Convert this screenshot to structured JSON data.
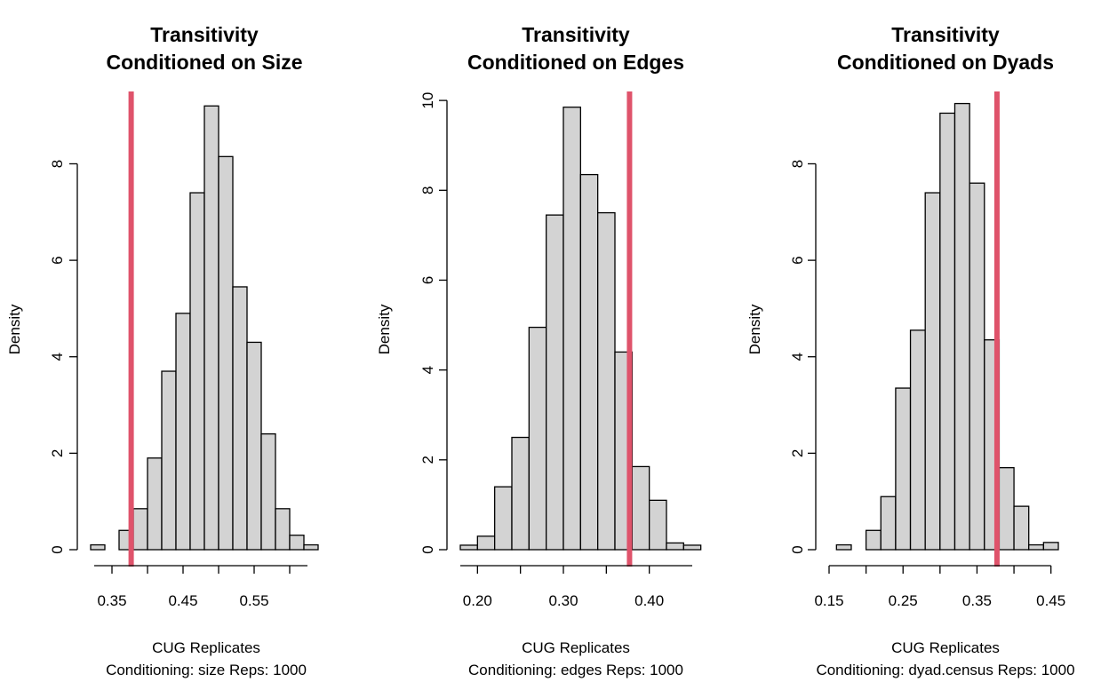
{
  "chart_data": [
    {
      "type": "histogram",
      "title": "Transitivity\nConditioned on Size",
      "title_lines": [
        "Transitivity",
        "Conditioned on Size"
      ],
      "xlabel_lines": [
        "CUG Replicates",
        "Conditioning: size Reps: 1000"
      ],
      "ylabel": "Density",
      "bin_width": 0.02,
      "bins": [
        {
          "x0": 0.32,
          "x1": 0.34,
          "density": 0.1
        },
        {
          "x0": 0.34,
          "x1": 0.36,
          "density": 0.0
        },
        {
          "x0": 0.36,
          "x1": 0.38,
          "density": 0.4
        },
        {
          "x0": 0.38,
          "x1": 0.4,
          "density": 0.85
        },
        {
          "x0": 0.4,
          "x1": 0.42,
          "density": 1.9
        },
        {
          "x0": 0.42,
          "x1": 0.44,
          "density": 3.7
        },
        {
          "x0": 0.44,
          "x1": 0.46,
          "density": 4.9
        },
        {
          "x0": 0.46,
          "x1": 0.48,
          "density": 7.4
        },
        {
          "x0": 0.48,
          "x1": 0.5,
          "density": 9.2
        },
        {
          "x0": 0.5,
          "x1": 0.52,
          "density": 8.15
        },
        {
          "x0": 0.52,
          "x1": 0.54,
          "density": 5.45
        },
        {
          "x0": 0.54,
          "x1": 0.56,
          "density": 4.3
        },
        {
          "x0": 0.56,
          "x1": 0.58,
          "density": 2.4
        },
        {
          "x0": 0.58,
          "x1": 0.6,
          "density": 0.85
        },
        {
          "x0": 0.6,
          "x1": 0.62,
          "density": 0.3
        },
        {
          "x0": 0.62,
          "x1": 0.64,
          "density": 0.1
        }
      ],
      "observed_line": 0.377,
      "line_color": "#df536b",
      "xlim": [
        0.32,
        0.64
      ],
      "ylim": [
        0,
        9.5
      ],
      "x_axis": {
        "from": 0.325,
        "to": 0.625,
        "ticks": [
          0.35,
          0.4,
          0.45,
          0.5,
          0.55,
          0.6
        ],
        "labels": [
          "0.35",
          "",
          "0.45",
          "",
          "0.55",
          ""
        ]
      },
      "y_axis": {
        "ticks": [
          0,
          2,
          4,
          6,
          8
        ],
        "labels": [
          "0",
          "2",
          "4",
          "6",
          "8"
        ]
      }
    },
    {
      "type": "histogram",
      "title": "Transitivity\nConditioned on Edges",
      "title_lines": [
        "Transitivity",
        "Conditioned on Edges"
      ],
      "xlabel_lines": [
        "CUG Replicates",
        "Conditioning: edges Reps: 1000"
      ],
      "ylabel": "Density",
      "bin_width": 0.02,
      "bins": [
        {
          "x0": 0.18,
          "x1": 0.2,
          "density": 0.1
        },
        {
          "x0": 0.2,
          "x1": 0.22,
          "density": 0.3
        },
        {
          "x0": 0.22,
          "x1": 0.24,
          "density": 1.4
        },
        {
          "x0": 0.24,
          "x1": 0.26,
          "density": 2.5
        },
        {
          "x0": 0.26,
          "x1": 0.28,
          "density": 4.95
        },
        {
          "x0": 0.28,
          "x1": 0.3,
          "density": 7.45
        },
        {
          "x0": 0.3,
          "x1": 0.32,
          "density": 9.85
        },
        {
          "x0": 0.32,
          "x1": 0.34,
          "density": 8.35
        },
        {
          "x0": 0.34,
          "x1": 0.36,
          "density": 7.5
        },
        {
          "x0": 0.36,
          "x1": 0.38,
          "density": 4.4
        },
        {
          "x0": 0.38,
          "x1": 0.4,
          "density": 1.85
        },
        {
          "x0": 0.4,
          "x1": 0.42,
          "density": 1.1
        },
        {
          "x0": 0.42,
          "x1": 0.44,
          "density": 0.15
        },
        {
          "x0": 0.44,
          "x1": 0.46,
          "density": 0.1
        }
      ],
      "observed_line": 0.377,
      "line_color": "#df536b",
      "xlim": [
        0.18,
        0.45
      ],
      "ylim": [
        0,
        10.2
      ],
      "x_axis": {
        "from": 0.18,
        "to": 0.45,
        "ticks": [
          0.2,
          0.25,
          0.3,
          0.35,
          0.4
        ],
        "labels": [
          "0.20",
          "",
          "0.30",
          "",
          "0.40"
        ]
      },
      "y_axis": {
        "ticks": [
          0,
          2,
          4,
          6,
          8,
          10
        ],
        "labels": [
          "0",
          "2",
          "4",
          "6",
          "8",
          "10"
        ]
      }
    },
    {
      "type": "histogram",
      "title": "Transitivity\nConditioned on Dyads",
      "title_lines": [
        "Transitivity",
        "Conditioned on Dyads"
      ],
      "xlabel_lines": [
        "CUG Replicates",
        "Conditioning: dyad.census Reps: 1000"
      ],
      "ylabel": "Density",
      "bin_width": 0.02,
      "bins": [
        {
          "x0": 0.16,
          "x1": 0.18,
          "density": 0.1
        },
        {
          "x0": 0.18,
          "x1": 0.2,
          "density": 0.0
        },
        {
          "x0": 0.2,
          "x1": 0.22,
          "density": 0.4
        },
        {
          "x0": 0.22,
          "x1": 0.24,
          "density": 1.1
        },
        {
          "x0": 0.24,
          "x1": 0.26,
          "density": 3.35
        },
        {
          "x0": 0.26,
          "x1": 0.28,
          "density": 4.55
        },
        {
          "x0": 0.28,
          "x1": 0.3,
          "density": 7.4
        },
        {
          "x0": 0.3,
          "x1": 0.32,
          "density": 9.05
        },
        {
          "x0": 0.32,
          "x1": 0.34,
          "density": 9.25
        },
        {
          "x0": 0.34,
          "x1": 0.36,
          "density": 7.6
        },
        {
          "x0": 0.36,
          "x1": 0.38,
          "density": 4.35
        },
        {
          "x0": 0.38,
          "x1": 0.4,
          "density": 1.7
        },
        {
          "x0": 0.4,
          "x1": 0.42,
          "density": 0.9
        },
        {
          "x0": 0.42,
          "x1": 0.44,
          "density": 0.1
        },
        {
          "x0": 0.44,
          "x1": 0.46,
          "density": 0.15
        }
      ],
      "observed_line": 0.377,
      "line_color": "#df536b",
      "xlim": [
        0.15,
        0.46
      ],
      "ylim": [
        0,
        9.5
      ],
      "x_axis": {
        "from": 0.15,
        "to": 0.45,
        "ticks": [
          0.15,
          0.2,
          0.25,
          0.3,
          0.35,
          0.4,
          0.45
        ],
        "labels": [
          "0.15",
          "",
          "0.25",
          "",
          "0.35",
          "",
          "0.45"
        ]
      },
      "y_axis": {
        "ticks": [
          0,
          2,
          4,
          6,
          8
        ],
        "labels": [
          "0",
          "2",
          "4",
          "6",
          "8"
        ]
      }
    }
  ],
  "colors": {
    "bar_fill": "#d3d3d3",
    "bar_stroke": "#000000",
    "observed": "#df536b"
  }
}
